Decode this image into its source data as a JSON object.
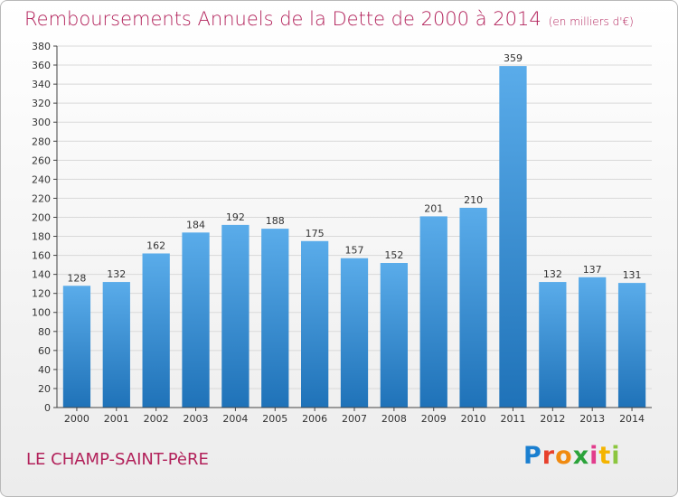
{
  "colors": {
    "title": "#b2215a",
    "bar_top": "#5aacea",
    "bar_bottom": "#1f72b8",
    "grid": "#d9d9d9",
    "axis": "#444444",
    "text": "#333333"
  },
  "logo": {
    "letters": [
      "P",
      "r",
      "o",
      "x",
      "i",
      "t",
      "i"
    ],
    "letter_colors": [
      "#1a7fd0",
      "#e7402c",
      "#f08a10",
      "#2aa33a",
      "#e23c8c",
      "#f4b400",
      "#8cc63f"
    ]
  },
  "commune": "LE CHAMP-SAINT-PèRE",
  "chart_data": {
    "type": "bar",
    "title": "Remboursements Annuels de la Dette de 2000 à 2014",
    "subtitle": "(en milliers d'€)",
    "xlabel": "",
    "ylabel": "",
    "categories": [
      "2000",
      "2001",
      "2002",
      "2003",
      "2004",
      "2005",
      "2006",
      "2007",
      "2008",
      "2009",
      "2010",
      "2011",
      "2012",
      "2013",
      "2014"
    ],
    "values": [
      128,
      132,
      162,
      184,
      192,
      188,
      175,
      157,
      152,
      201,
      210,
      359,
      132,
      137,
      131
    ],
    "data_labels": [
      "128",
      "132",
      "162",
      "184",
      "192",
      "188",
      "175",
      "157",
      "152",
      "201",
      "210",
      "359",
      "132",
      "137",
      "131"
    ],
    "ylim": [
      0,
      380
    ],
    "ytick_step": 20,
    "yticks": [
      "0",
      "20",
      "40",
      "60",
      "80",
      "100",
      "120",
      "140",
      "160",
      "180",
      "200",
      "220",
      "240",
      "260",
      "280",
      "300",
      "320",
      "340",
      "360",
      "380"
    ],
    "grid": true,
    "legend": "none"
  }
}
